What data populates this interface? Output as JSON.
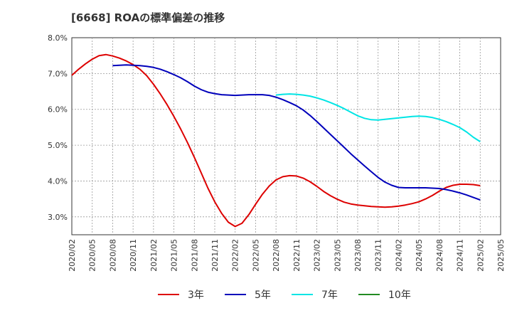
{
  "chart_data": {
    "type": "line",
    "title": "[6668]  ROAの標準偏差の推移",
    "xlabel": "",
    "ylabel": "",
    "ylim": [
      2.5,
      8.0
    ],
    "yticks": [
      "3.0%",
      "4.0%",
      "5.0%",
      "6.0%",
      "7.0%",
      "8.0%"
    ],
    "ytick_values": [
      3.0,
      4.0,
      5.0,
      6.0,
      7.0,
      8.0
    ],
    "xticks": [
      "2020/02",
      "2020/05",
      "2020/08",
      "2020/11",
      "2021/02",
      "2021/05",
      "2021/08",
      "2021/11",
      "2022/02",
      "2022/05",
      "2022/08",
      "2022/11",
      "2023/02",
      "2023/05",
      "2023/08",
      "2023/11",
      "2024/02",
      "2024/05",
      "2024/08",
      "2024/11",
      "2025/02",
      "2025/05"
    ],
    "grid": true,
    "legend_position": "bottom",
    "series": [
      {
        "name": "3年",
        "color": "#dd0000",
        "points": [
          [
            "2020/02",
            6.95
          ],
          [
            "2020/03",
            7.12
          ],
          [
            "2020/04",
            7.27
          ],
          [
            "2020/05",
            7.4
          ],
          [
            "2020/06",
            7.5
          ],
          [
            "2020/07",
            7.53
          ],
          [
            "2020/08",
            7.49
          ],
          [
            "2020/09",
            7.43
          ],
          [
            "2020/10",
            7.35
          ],
          [
            "2020/11",
            7.25
          ],
          [
            "2020/12",
            7.12
          ],
          [
            "2021/01",
            6.94
          ],
          [
            "2021/02",
            6.7
          ],
          [
            "2021/03",
            6.43
          ],
          [
            "2021/04",
            6.13
          ],
          [
            "2021/05",
            5.8
          ],
          [
            "2021/06",
            5.45
          ],
          [
            "2021/07",
            5.07
          ],
          [
            "2021/08",
            4.66
          ],
          [
            "2021/09",
            4.23
          ],
          [
            "2021/10",
            3.8
          ],
          [
            "2021/11",
            3.42
          ],
          [
            "2021/12",
            3.1
          ],
          [
            "2022/01",
            2.85
          ],
          [
            "2022/02",
            2.73
          ],
          [
            "2022/03",
            2.82
          ],
          [
            "2022/04",
            3.06
          ],
          [
            "2022/05",
            3.35
          ],
          [
            "2022/06",
            3.63
          ],
          [
            "2022/07",
            3.86
          ],
          [
            "2022/08",
            4.03
          ],
          [
            "2022/09",
            4.12
          ],
          [
            "2022/10",
            4.15
          ],
          [
            "2022/11",
            4.14
          ],
          [
            "2022/12",
            4.08
          ],
          [
            "2023/01",
            3.98
          ],
          [
            "2023/02",
            3.85
          ],
          [
            "2023/03",
            3.71
          ],
          [
            "2023/04",
            3.59
          ],
          [
            "2023/05",
            3.49
          ],
          [
            "2023/06",
            3.41
          ],
          [
            "2023/07",
            3.36
          ],
          [
            "2023/08",
            3.33
          ],
          [
            "2023/09",
            3.31
          ],
          [
            "2023/10",
            3.29
          ],
          [
            "2023/11",
            3.28
          ],
          [
            "2023/12",
            3.27
          ],
          [
            "2024/01",
            3.28
          ],
          [
            "2024/02",
            3.3
          ],
          [
            "2024/03",
            3.33
          ],
          [
            "2024/04",
            3.37
          ],
          [
            "2024/05",
            3.42
          ],
          [
            "2024/06",
            3.5
          ],
          [
            "2024/07",
            3.6
          ],
          [
            "2024/08",
            3.72
          ],
          [
            "2024/09",
            3.82
          ],
          [
            "2024/10",
            3.88
          ],
          [
            "2024/11",
            3.91
          ],
          [
            "2024/12",
            3.91
          ],
          [
            "2025/01",
            3.9
          ],
          [
            "2025/02",
            3.87
          ]
        ]
      },
      {
        "name": "5年",
        "color": "#0000bb",
        "points": [
          [
            "2020/08",
            7.22
          ],
          [
            "2020/09",
            7.23
          ],
          [
            "2020/10",
            7.24
          ],
          [
            "2020/11",
            7.23
          ],
          [
            "2020/12",
            7.22
          ],
          [
            "2021/01",
            7.2
          ],
          [
            "2021/02",
            7.17
          ],
          [
            "2021/03",
            7.12
          ],
          [
            "2021/04",
            7.05
          ],
          [
            "2021/05",
            6.97
          ],
          [
            "2021/06",
            6.88
          ],
          [
            "2021/07",
            6.77
          ],
          [
            "2021/08",
            6.65
          ],
          [
            "2021/09",
            6.55
          ],
          [
            "2021/10",
            6.48
          ],
          [
            "2021/11",
            6.44
          ],
          [
            "2021/12",
            6.41
          ],
          [
            "2022/01",
            6.4
          ],
          [
            "2022/02",
            6.39
          ],
          [
            "2022/03",
            6.4
          ],
          [
            "2022/04",
            6.41
          ],
          [
            "2022/05",
            6.41
          ],
          [
            "2022/06",
            6.41
          ],
          [
            "2022/07",
            6.39
          ],
          [
            "2022/08",
            6.34
          ],
          [
            "2022/09",
            6.27
          ],
          [
            "2022/10",
            6.19
          ],
          [
            "2022/11",
            6.1
          ],
          [
            "2022/12",
            5.98
          ],
          [
            "2023/01",
            5.83
          ],
          [
            "2023/02",
            5.66
          ],
          [
            "2023/03",
            5.48
          ],
          [
            "2023/04",
            5.3
          ],
          [
            "2023/05",
            5.12
          ],
          [
            "2023/06",
            4.94
          ],
          [
            "2023/07",
            4.76
          ],
          [
            "2023/08",
            4.59
          ],
          [
            "2023/09",
            4.42
          ],
          [
            "2023/10",
            4.26
          ],
          [
            "2023/11",
            4.1
          ],
          [
            "2023/12",
            3.97
          ],
          [
            "2024/01",
            3.88
          ],
          [
            "2024/02",
            3.82
          ],
          [
            "2024/03",
            3.81
          ],
          [
            "2024/04",
            3.81
          ],
          [
            "2024/05",
            3.81
          ],
          [
            "2024/06",
            3.81
          ],
          [
            "2024/07",
            3.8
          ],
          [
            "2024/08",
            3.79
          ],
          [
            "2024/09",
            3.76
          ],
          [
            "2024/10",
            3.72
          ],
          [
            "2024/11",
            3.67
          ],
          [
            "2024/12",
            3.61
          ],
          [
            "2025/01",
            3.54
          ],
          [
            "2025/02",
            3.47
          ]
        ]
      },
      {
        "name": "7年",
        "color": "#00e5e5",
        "points": [
          [
            "2022/08",
            6.4
          ],
          [
            "2022/09",
            6.42
          ],
          [
            "2022/10",
            6.43
          ],
          [
            "2022/11",
            6.42
          ],
          [
            "2022/12",
            6.4
          ],
          [
            "2023/01",
            6.37
          ],
          [
            "2023/02",
            6.32
          ],
          [
            "2023/03",
            6.26
          ],
          [
            "2023/04",
            6.19
          ],
          [
            "2023/05",
            6.11
          ],
          [
            "2023/06",
            6.02
          ],
          [
            "2023/07",
            5.92
          ],
          [
            "2023/08",
            5.82
          ],
          [
            "2023/09",
            5.75
          ],
          [
            "2023/10",
            5.71
          ],
          [
            "2023/11",
            5.7
          ],
          [
            "2023/12",
            5.72
          ],
          [
            "2024/01",
            5.74
          ],
          [
            "2024/02",
            5.76
          ],
          [
            "2024/03",
            5.78
          ],
          [
            "2024/04",
            5.8
          ],
          [
            "2024/05",
            5.81
          ],
          [
            "2024/06",
            5.8
          ],
          [
            "2024/07",
            5.77
          ],
          [
            "2024/08",
            5.72
          ],
          [
            "2024/09",
            5.66
          ],
          [
            "2024/10",
            5.58
          ],
          [
            "2024/11",
            5.49
          ],
          [
            "2024/12",
            5.37
          ],
          [
            "2025/01",
            5.22
          ],
          [
            "2025/02",
            5.1
          ]
        ]
      },
      {
        "name": "10年",
        "color": "#228b22",
        "points": []
      }
    ]
  }
}
